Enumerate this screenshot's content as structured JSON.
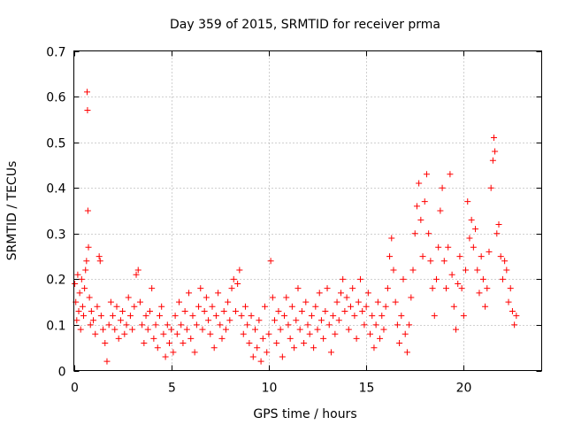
{
  "chart_data": {
    "type": "scatter",
    "title": "Day 359 of 2015, SRMTID for receiver prma",
    "xlabel": "GPS time / hours",
    "ylabel": "SRMTID / TECUs",
    "xlim": [
      0,
      24
    ],
    "ylim": [
      0,
      0.7
    ],
    "xticks": [
      0,
      5,
      10,
      15,
      20
    ],
    "xtick_labels": [
      "0",
      "5",
      "10",
      "15",
      "20"
    ],
    "yticks": [
      0,
      0.1,
      0.2,
      0.3,
      0.4,
      0.5,
      0.6,
      0.7
    ],
    "ytick_labels": [
      "0",
      "0.1",
      "0.2",
      "0.3",
      "0.4",
      "0.5",
      "0.6",
      "0.7"
    ],
    "grid": true,
    "marker": "+",
    "color": "#ff0000",
    "series": [
      {
        "name": "prma",
        "points": [
          [
            0.05,
            0.19
          ],
          [
            0.1,
            0.15
          ],
          [
            0.15,
            0.11
          ],
          [
            0.2,
            0.21
          ],
          [
            0.25,
            0.13
          ],
          [
            0.3,
            0.17
          ],
          [
            0.35,
            0.09
          ],
          [
            0.4,
            0.2
          ],
          [
            0.45,
            0.14
          ],
          [
            0.5,
            0.12
          ],
          [
            0.55,
            0.18
          ],
          [
            0.6,
            0.22
          ],
          [
            0.65,
            0.24
          ],
          [
            0.68,
            0.61
          ],
          [
            0.7,
            0.57
          ],
          [
            0.72,
            0.35
          ],
          [
            0.75,
            0.27
          ],
          [
            0.8,
            0.16
          ],
          [
            0.85,
            0.1
          ],
          [
            0.9,
            0.13
          ],
          [
            1.0,
            0.11
          ],
          [
            1.1,
            0.08
          ],
          [
            1.2,
            0.14
          ],
          [
            1.3,
            0.25
          ],
          [
            1.35,
            0.24
          ],
          [
            1.4,
            0.12
          ],
          [
            1.5,
            0.09
          ],
          [
            1.6,
            0.06
          ],
          [
            1.7,
            0.02
          ],
          [
            1.8,
            0.1
          ],
          [
            1.9,
            0.15
          ],
          [
            2.0,
            0.12
          ],
          [
            2.1,
            0.09
          ],
          [
            2.2,
            0.14
          ],
          [
            2.3,
            0.07
          ],
          [
            2.4,
            0.11
          ],
          [
            2.5,
            0.13
          ],
          [
            2.6,
            0.08
          ],
          [
            2.7,
            0.1
          ],
          [
            2.8,
            0.16
          ],
          [
            2.9,
            0.12
          ],
          [
            3.0,
            0.09
          ],
          [
            3.1,
            0.14
          ],
          [
            3.2,
            0.21
          ],
          [
            3.3,
            0.22
          ],
          [
            3.4,
            0.15
          ],
          [
            3.5,
            0.1
          ],
          [
            3.6,
            0.06
          ],
          [
            3.7,
            0.12
          ],
          [
            3.8,
            0.09
          ],
          [
            3.9,
            0.13
          ],
          [
            4.0,
            0.18
          ],
          [
            4.1,
            0.07
          ],
          [
            4.2,
            0.1
          ],
          [
            4.3,
            0.05
          ],
          [
            4.4,
            0.12
          ],
          [
            4.5,
            0.14
          ],
          [
            4.6,
            0.08
          ],
          [
            4.7,
            0.03
          ],
          [
            4.8,
            0.1
          ],
          [
            4.9,
            0.06
          ],
          [
            5.0,
            0.09
          ],
          [
            5.1,
            0.04
          ],
          [
            5.2,
            0.12
          ],
          [
            5.3,
            0.08
          ],
          [
            5.4,
            0.15
          ],
          [
            5.5,
            0.1
          ],
          [
            5.6,
            0.06
          ],
          [
            5.7,
            0.13
          ],
          [
            5.8,
            0.09
          ],
          [
            5.9,
            0.17
          ],
          [
            6.0,
            0.07
          ],
          [
            6.1,
            0.12
          ],
          [
            6.2,
            0.04
          ],
          [
            6.3,
            0.1
          ],
          [
            6.4,
            0.14
          ],
          [
            6.5,
            0.18
          ],
          [
            6.6,
            0.09
          ],
          [
            6.7,
            0.13
          ],
          [
            6.8,
            0.16
          ],
          [
            6.9,
            0.11
          ],
          [
            7.0,
            0.08
          ],
          [
            7.1,
            0.14
          ],
          [
            7.2,
            0.05
          ],
          [
            7.3,
            0.12
          ],
          [
            7.4,
            0.17
          ],
          [
            7.5,
            0.1
          ],
          [
            7.6,
            0.07
          ],
          [
            7.7,
            0.13
          ],
          [
            7.8,
            0.09
          ],
          [
            7.9,
            0.15
          ],
          [
            8.0,
            0.11
          ],
          [
            8.1,
            0.18
          ],
          [
            8.2,
            0.2
          ],
          [
            8.3,
            0.13
          ],
          [
            8.4,
            0.19
          ],
          [
            8.5,
            0.22
          ],
          [
            8.6,
            0.12
          ],
          [
            8.7,
            0.08
          ],
          [
            8.8,
            0.14
          ],
          [
            8.9,
            0.1
          ],
          [
            9.0,
            0.06
          ],
          [
            9.1,
            0.12
          ],
          [
            9.2,
            0.03
          ],
          [
            9.3,
            0.09
          ],
          [
            9.4,
            0.05
          ],
          [
            9.5,
            0.11
          ],
          [
            9.6,
            0.02
          ],
          [
            9.7,
            0.07
          ],
          [
            9.8,
            0.14
          ],
          [
            9.9,
            0.04
          ],
          [
            10.0,
            0.08
          ],
          [
            10.1,
            0.24
          ],
          [
            10.2,
            0.16
          ],
          [
            10.3,
            0.11
          ],
          [
            10.4,
            0.06
          ],
          [
            10.5,
            0.13
          ],
          [
            10.6,
            0.09
          ],
          [
            10.7,
            0.03
          ],
          [
            10.8,
            0.12
          ],
          [
            10.9,
            0.16
          ],
          [
            11.0,
            0.1
          ],
          [
            11.1,
            0.07
          ],
          [
            11.2,
            0.14
          ],
          [
            11.3,
            0.05
          ],
          [
            11.4,
            0.11
          ],
          [
            11.5,
            0.18
          ],
          [
            11.6,
            0.09
          ],
          [
            11.7,
            0.13
          ],
          [
            11.8,
            0.06
          ],
          [
            11.9,
            0.15
          ],
          [
            12.0,
            0.1
          ],
          [
            12.1,
            0.08
          ],
          [
            12.2,
            0.12
          ],
          [
            12.3,
            0.05
          ],
          [
            12.4,
            0.14
          ],
          [
            12.5,
            0.09
          ],
          [
            12.6,
            0.17
          ],
          [
            12.7,
            0.11
          ],
          [
            12.8,
            0.07
          ],
          [
            12.9,
            0.13
          ],
          [
            13.0,
            0.18
          ],
          [
            13.1,
            0.1
          ],
          [
            13.2,
            0.04
          ],
          [
            13.3,
            0.12
          ],
          [
            13.4,
            0.08
          ],
          [
            13.5,
            0.15
          ],
          [
            13.6,
            0.11
          ],
          [
            13.7,
            0.17
          ],
          [
            13.8,
            0.2
          ],
          [
            13.9,
            0.13
          ],
          [
            14.0,
            0.16
          ],
          [
            14.1,
            0.09
          ],
          [
            14.2,
            0.14
          ],
          [
            14.3,
            0.18
          ],
          [
            14.4,
            0.12
          ],
          [
            14.5,
            0.07
          ],
          [
            14.6,
            0.15
          ],
          [
            14.7,
            0.2
          ],
          [
            14.8,
            0.13
          ],
          [
            14.9,
            0.1
          ],
          [
            15.0,
            0.14
          ],
          [
            15.1,
            0.17
          ],
          [
            15.2,
            0.08
          ],
          [
            15.3,
            0.12
          ],
          [
            15.4,
            0.05
          ],
          [
            15.5,
            0.1
          ],
          [
            15.6,
            0.15
          ],
          [
            15.7,
            0.07
          ],
          [
            15.8,
            0.12
          ],
          [
            15.9,
            0.09
          ],
          [
            16.0,
            0.14
          ],
          [
            16.1,
            0.18
          ],
          [
            16.2,
            0.25
          ],
          [
            16.3,
            0.29
          ],
          [
            16.4,
            0.22
          ],
          [
            16.5,
            0.15
          ],
          [
            16.6,
            0.1
          ],
          [
            16.7,
            0.06
          ],
          [
            16.8,
            0.12
          ],
          [
            16.9,
            0.2
          ],
          [
            17.0,
            0.08
          ],
          [
            17.1,
            0.04
          ],
          [
            17.2,
            0.1
          ],
          [
            17.3,
            0.16
          ],
          [
            17.4,
            0.22
          ],
          [
            17.5,
            0.3
          ],
          [
            17.6,
            0.36
          ],
          [
            17.7,
            0.41
          ],
          [
            17.8,
            0.33
          ],
          [
            17.9,
            0.25
          ],
          [
            18.0,
            0.37
          ],
          [
            18.1,
            0.43
          ],
          [
            18.2,
            0.3
          ],
          [
            18.3,
            0.24
          ],
          [
            18.4,
            0.18
          ],
          [
            18.5,
            0.12
          ],
          [
            18.6,
            0.2
          ],
          [
            18.7,
            0.27
          ],
          [
            18.8,
            0.35
          ],
          [
            18.9,
            0.4
          ],
          [
            19.0,
            0.24
          ],
          [
            19.1,
            0.18
          ],
          [
            19.2,
            0.27
          ],
          [
            19.3,
            0.43
          ],
          [
            19.4,
            0.21
          ],
          [
            19.5,
            0.14
          ],
          [
            19.6,
            0.09
          ],
          [
            19.7,
            0.19
          ],
          [
            19.8,
            0.25
          ],
          [
            19.9,
            0.18
          ],
          [
            20.0,
            0.12
          ],
          [
            20.1,
            0.22
          ],
          [
            20.2,
            0.37
          ],
          [
            20.3,
            0.29
          ],
          [
            20.4,
            0.33
          ],
          [
            20.5,
            0.27
          ],
          [
            20.6,
            0.31
          ],
          [
            20.7,
            0.22
          ],
          [
            20.8,
            0.17
          ],
          [
            20.9,
            0.25
          ],
          [
            21.0,
            0.2
          ],
          [
            21.1,
            0.14
          ],
          [
            21.2,
            0.18
          ],
          [
            21.3,
            0.26
          ],
          [
            21.4,
            0.4
          ],
          [
            21.5,
            0.46
          ],
          [
            21.55,
            0.51
          ],
          [
            21.6,
            0.48
          ],
          [
            21.7,
            0.3
          ],
          [
            21.8,
            0.32
          ],
          [
            21.9,
            0.25
          ],
          [
            22.0,
            0.2
          ],
          [
            22.1,
            0.24
          ],
          [
            22.2,
            0.22
          ],
          [
            22.3,
            0.15
          ],
          [
            22.4,
            0.18
          ],
          [
            22.5,
            0.13
          ],
          [
            22.6,
            0.1
          ],
          [
            22.7,
            0.12
          ]
        ]
      }
    ]
  }
}
